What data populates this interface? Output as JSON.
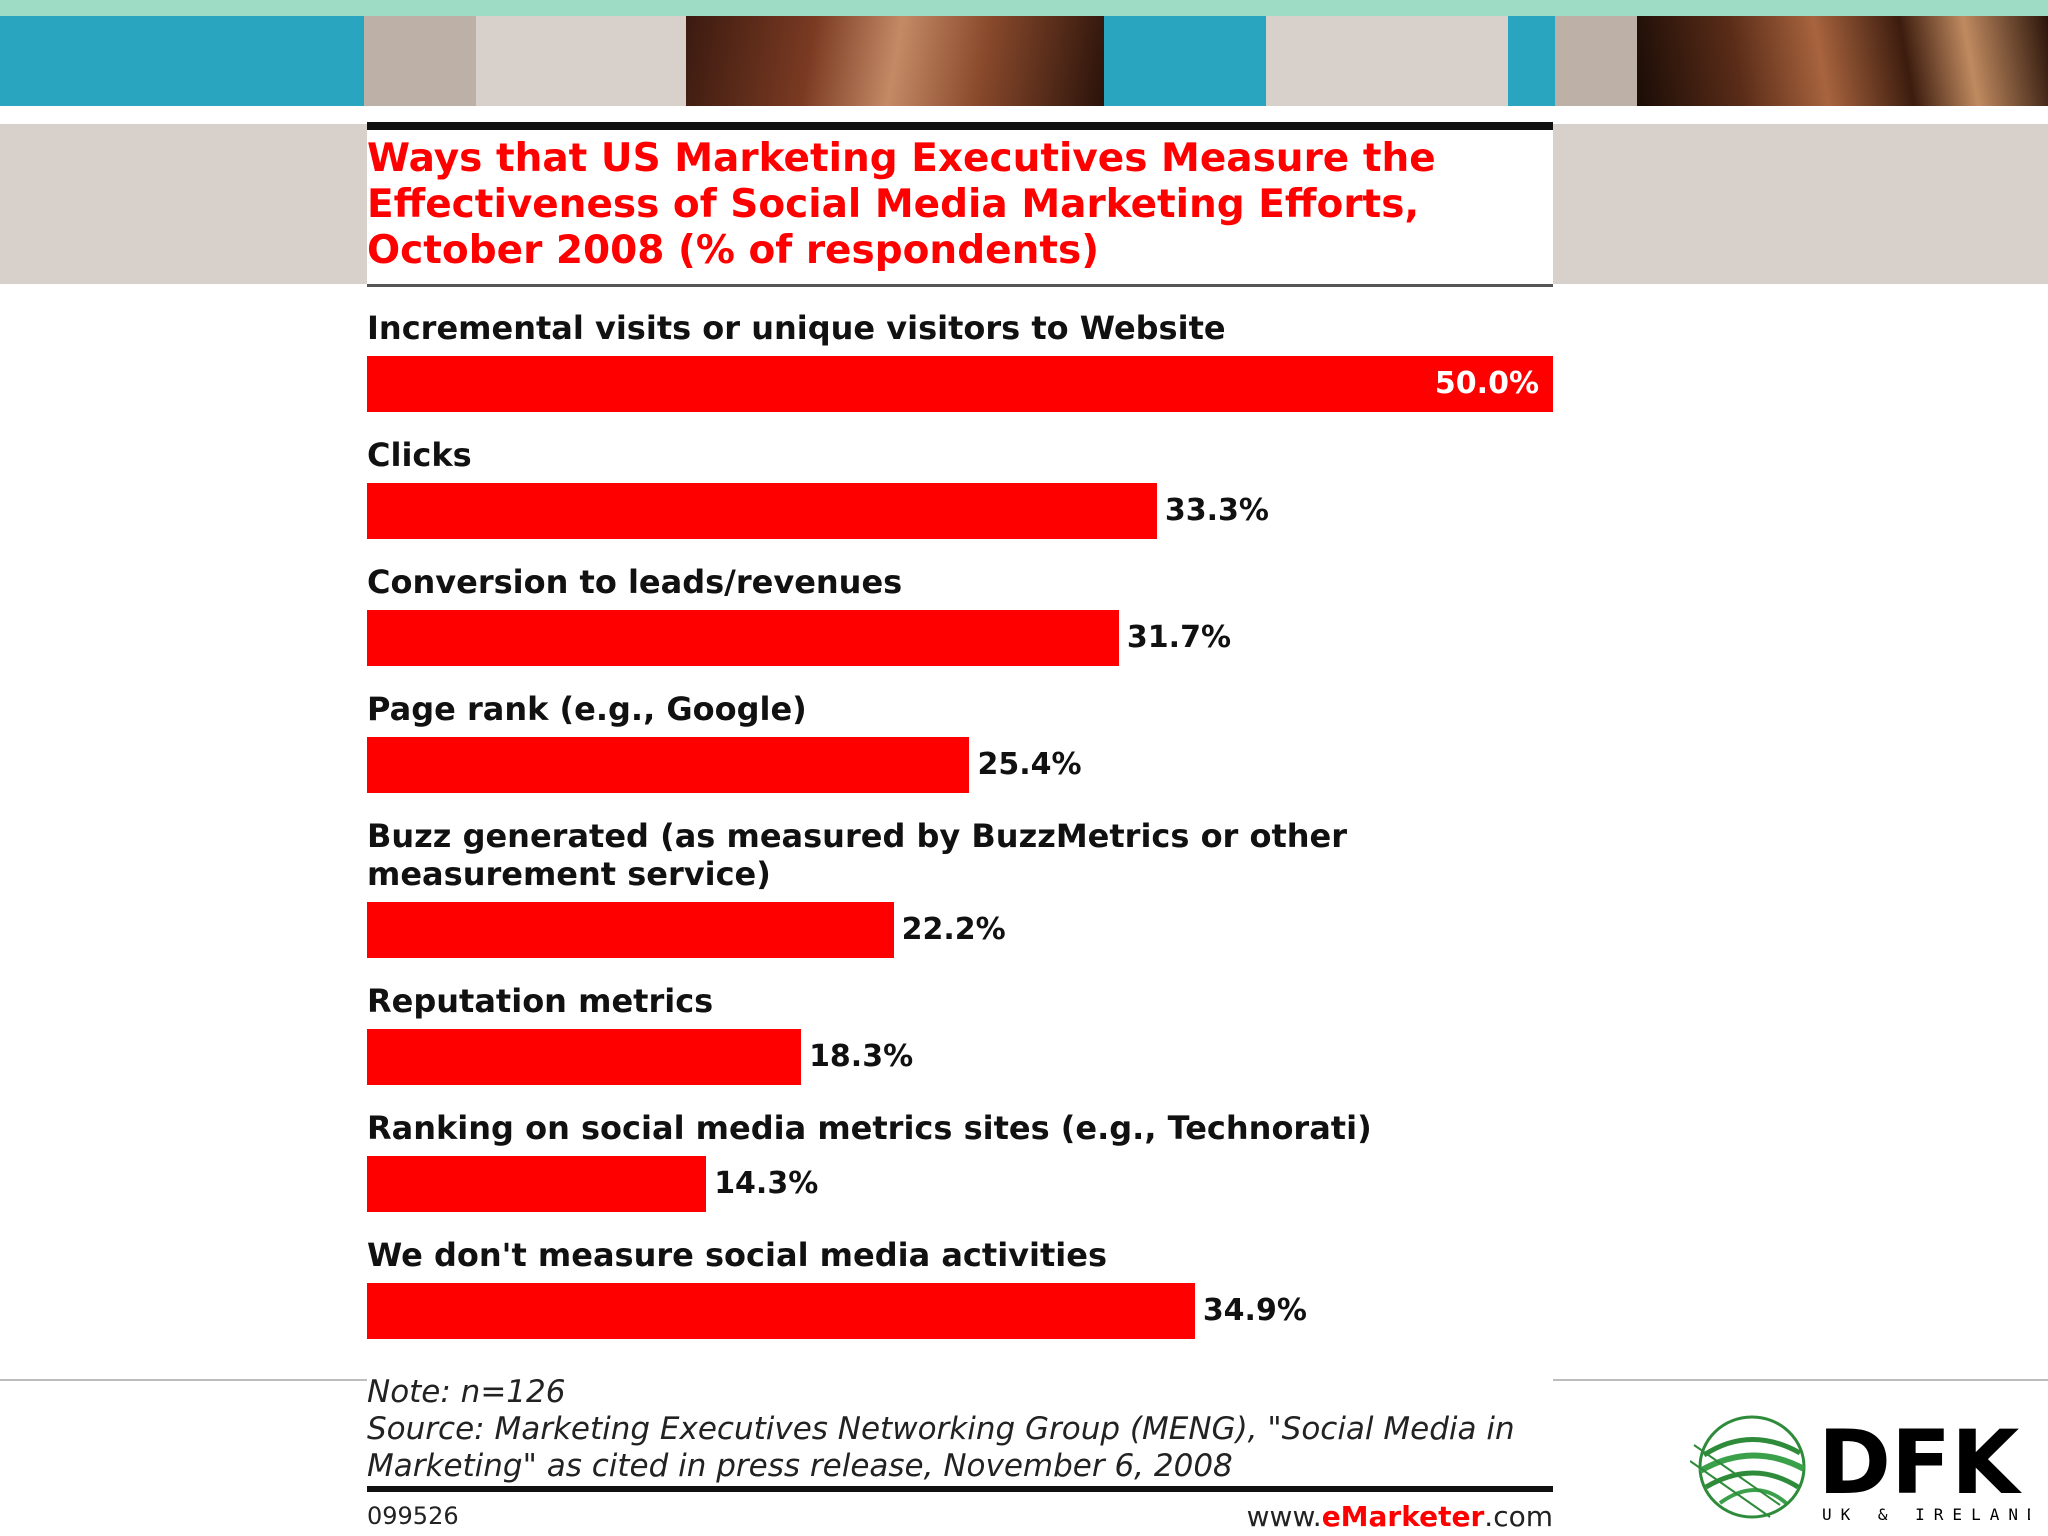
{
  "colors": {
    "bar": "#ff0000",
    "title": "#ff0000",
    "topline": "#9fdcc6",
    "teal": "#2aa5c0",
    "band": "#d8d0ca"
  },
  "header": {
    "strips": [
      {
        "left": 0,
        "width": 364,
        "color": "#2aa5c0"
      },
      {
        "left": 364,
        "width": 112,
        "color": "#bdb1a7"
      },
      {
        "left": 476,
        "width": 210,
        "color": "#d8d0ca"
      },
      {
        "left": 1104,
        "width": 162,
        "color": "#2aa5c0"
      },
      {
        "left": 1266,
        "width": 242,
        "color": "#d8d0ca"
      },
      {
        "left": 1508,
        "width": 47,
        "color": "#2aa5c0"
      },
      {
        "left": 1555,
        "width": 82,
        "color": "#bdb1a7"
      }
    ]
  },
  "chart_data": {
    "type": "bar",
    "orientation": "horizontal",
    "title": "Ways that US Marketing Executives Measure the Effectiveness of Social Media Marketing Efforts, October 2008 (% of respondents)",
    "categories": [
      "Incremental visits or unique visitors to Website",
      "Clicks",
      "Conversion to leads/revenues",
      "Page rank (e.g., Google)",
      "Buzz generated (as measured by BuzzMetrics or other measurement service)",
      "Reputation metrics",
      "Ranking on social media metrics sites (e.g., Technorati)",
      "We don't measure social media activities"
    ],
    "values": [
      50.0,
      33.3,
      31.7,
      25.4,
      22.2,
      18.3,
      14.3,
      34.9
    ],
    "value_labels": [
      "50.0%",
      "33.3%",
      "31.7%",
      "25.4%",
      "22.2%",
      "18.3%",
      "14.3%",
      "34.9%"
    ],
    "xlim": [
      0,
      50
    ],
    "grid": false,
    "note": "Note: n=126",
    "source": "Source: Marketing Executives Networking Group (MENG), \"Social Media in Marketing\" as cited in press release, November 6, 2008",
    "chart_id": "099526",
    "site_prefix": "www.",
    "site_brand": "eMarketer",
    "site_suffix": ".com"
  },
  "logo": {
    "text": "DFK",
    "subtext": "UK & IRELAND"
  }
}
